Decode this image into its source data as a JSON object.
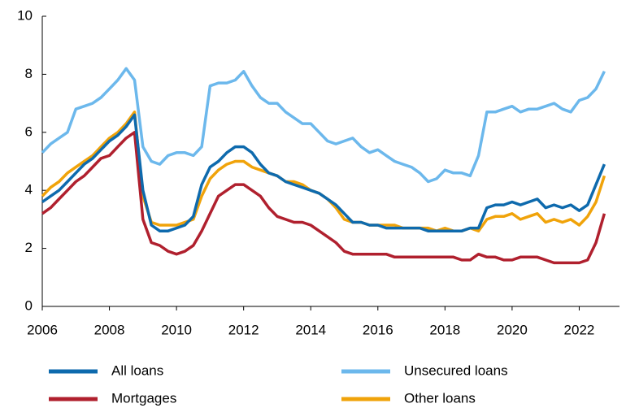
{
  "chart_data": {
    "type": "line",
    "x": [
      2006,
      2006.25,
      2006.5,
      2006.75,
      2007,
      2007.25,
      2007.5,
      2007.75,
      2008,
      2008.25,
      2008.5,
      2008.75,
      2009,
      2009.25,
      2009.5,
      2009.75,
      2010,
      2010.25,
      2010.5,
      2010.75,
      2011,
      2011.25,
      2011.5,
      2011.75,
      2012,
      2012.25,
      2012.5,
      2012.75,
      2013,
      2013.25,
      2013.5,
      2013.75,
      2014,
      2014.25,
      2014.5,
      2014.75,
      2015,
      2015.25,
      2015.5,
      2015.75,
      2016,
      2016.25,
      2016.5,
      2016.75,
      2017,
      2017.25,
      2017.5,
      2017.75,
      2018,
      2018.25,
      2018.5,
      2018.75,
      2019,
      2019.25,
      2019.5,
      2019.75,
      2020,
      2020.25,
      2020.5,
      2020.75,
      2021,
      2021.25,
      2021.5,
      2021.75,
      2022,
      2022.25,
      2022.5,
      2022.75
    ],
    "series": [
      {
        "name": "All loans",
        "color": "#0e6aad",
        "values": [
          3.6,
          3.8,
          4.0,
          4.3,
          4.6,
          4.9,
          5.1,
          5.4,
          5.7,
          5.9,
          6.2,
          6.6,
          4.0,
          2.8,
          2.6,
          2.6,
          2.7,
          2.8,
          3.1,
          4.2,
          4.8,
          5.0,
          5.3,
          5.5,
          5.5,
          5.3,
          4.9,
          4.6,
          4.5,
          4.3,
          4.2,
          4.1,
          4.0,
          3.9,
          3.7,
          3.5,
          3.2,
          2.9,
          2.9,
          2.8,
          2.8,
          2.7,
          2.7,
          2.7,
          2.7,
          2.7,
          2.6,
          2.6,
          2.6,
          2.6,
          2.6,
          2.7,
          2.7,
          3.4,
          3.5,
          3.5,
          3.6,
          3.5,
          3.6,
          3.7,
          3.4,
          3.5,
          3.4,
          3.5,
          3.3,
          3.5,
          4.2,
          4.9
        ]
      },
      {
        "name": "Unsecured loans",
        "color": "#6cb8ec",
        "values": [
          5.3,
          5.6,
          5.8,
          6.0,
          6.8,
          6.9,
          7.0,
          7.2,
          7.5,
          7.8,
          8.2,
          7.8,
          5.5,
          5.0,
          4.9,
          5.2,
          5.3,
          5.3,
          5.2,
          5.5,
          7.6,
          7.7,
          7.7,
          7.8,
          8.1,
          7.6,
          7.2,
          7.0,
          7.0,
          6.7,
          6.5,
          6.3,
          6.3,
          6.0,
          5.7,
          5.6,
          5.7,
          5.8,
          5.5,
          5.3,
          5.4,
          5.2,
          5.0,
          4.9,
          4.8,
          4.6,
          4.3,
          4.4,
          4.7,
          4.6,
          4.6,
          4.5,
          5.2,
          6.7,
          6.7,
          6.8,
          6.9,
          6.7,
          6.8,
          6.8,
          6.9,
          7.0,
          6.8,
          6.7,
          7.1,
          7.2,
          7.5,
          8.1
        ]
      },
      {
        "name": "Mortgages",
        "color": "#b0202e",
        "values": [
          3.2,
          3.4,
          3.7,
          4.0,
          4.3,
          4.5,
          4.8,
          5.1,
          5.2,
          5.5,
          5.8,
          6.0,
          3.0,
          2.2,
          2.1,
          1.9,
          1.8,
          1.9,
          2.1,
          2.6,
          3.2,
          3.8,
          4.0,
          4.2,
          4.2,
          4.0,
          3.8,
          3.4,
          3.1,
          3.0,
          2.9,
          2.9,
          2.8,
          2.6,
          2.4,
          2.2,
          1.9,
          1.8,
          1.8,
          1.8,
          1.8,
          1.8,
          1.7,
          1.7,
          1.7,
          1.7,
          1.7,
          1.7,
          1.7,
          1.7,
          1.6,
          1.6,
          1.8,
          1.7,
          1.7,
          1.6,
          1.6,
          1.7,
          1.7,
          1.7,
          1.6,
          1.5,
          1.5,
          1.5,
          1.5,
          1.6,
          2.2,
          3.2
        ]
      },
      {
        "name": "Other loans",
        "color": "#f0a30a",
        "values": [
          3.8,
          4.1,
          4.3,
          4.6,
          4.8,
          5.0,
          5.2,
          5.5,
          5.8,
          6.0,
          6.3,
          6.7,
          3.8,
          2.9,
          2.8,
          2.8,
          2.8,
          2.9,
          3.0,
          3.8,
          4.4,
          4.7,
          4.9,
          5.0,
          5.0,
          4.8,
          4.7,
          4.6,
          4.5,
          4.3,
          4.3,
          4.2,
          4.0,
          3.9,
          3.7,
          3.4,
          3.0,
          2.9,
          2.9,
          2.8,
          2.8,
          2.8,
          2.8,
          2.7,
          2.7,
          2.7,
          2.7,
          2.6,
          2.7,
          2.6,
          2.6,
          2.7,
          2.6,
          3.0,
          3.1,
          3.1,
          3.2,
          3.0,
          3.1,
          3.2,
          2.9,
          3.0,
          2.9,
          3.0,
          2.8,
          3.1,
          3.6,
          4.5
        ]
      }
    ],
    "xlim": [
      2006,
      2023.2
    ],
    "xticks": [
      2006,
      2008,
      2010,
      2012,
      2014,
      2016,
      2018,
      2020,
      2022
    ],
    "ylim": [
      0,
      10
    ],
    "yticks": [
      0,
      2,
      4,
      6,
      8,
      10
    ],
    "grid": false
  }
}
